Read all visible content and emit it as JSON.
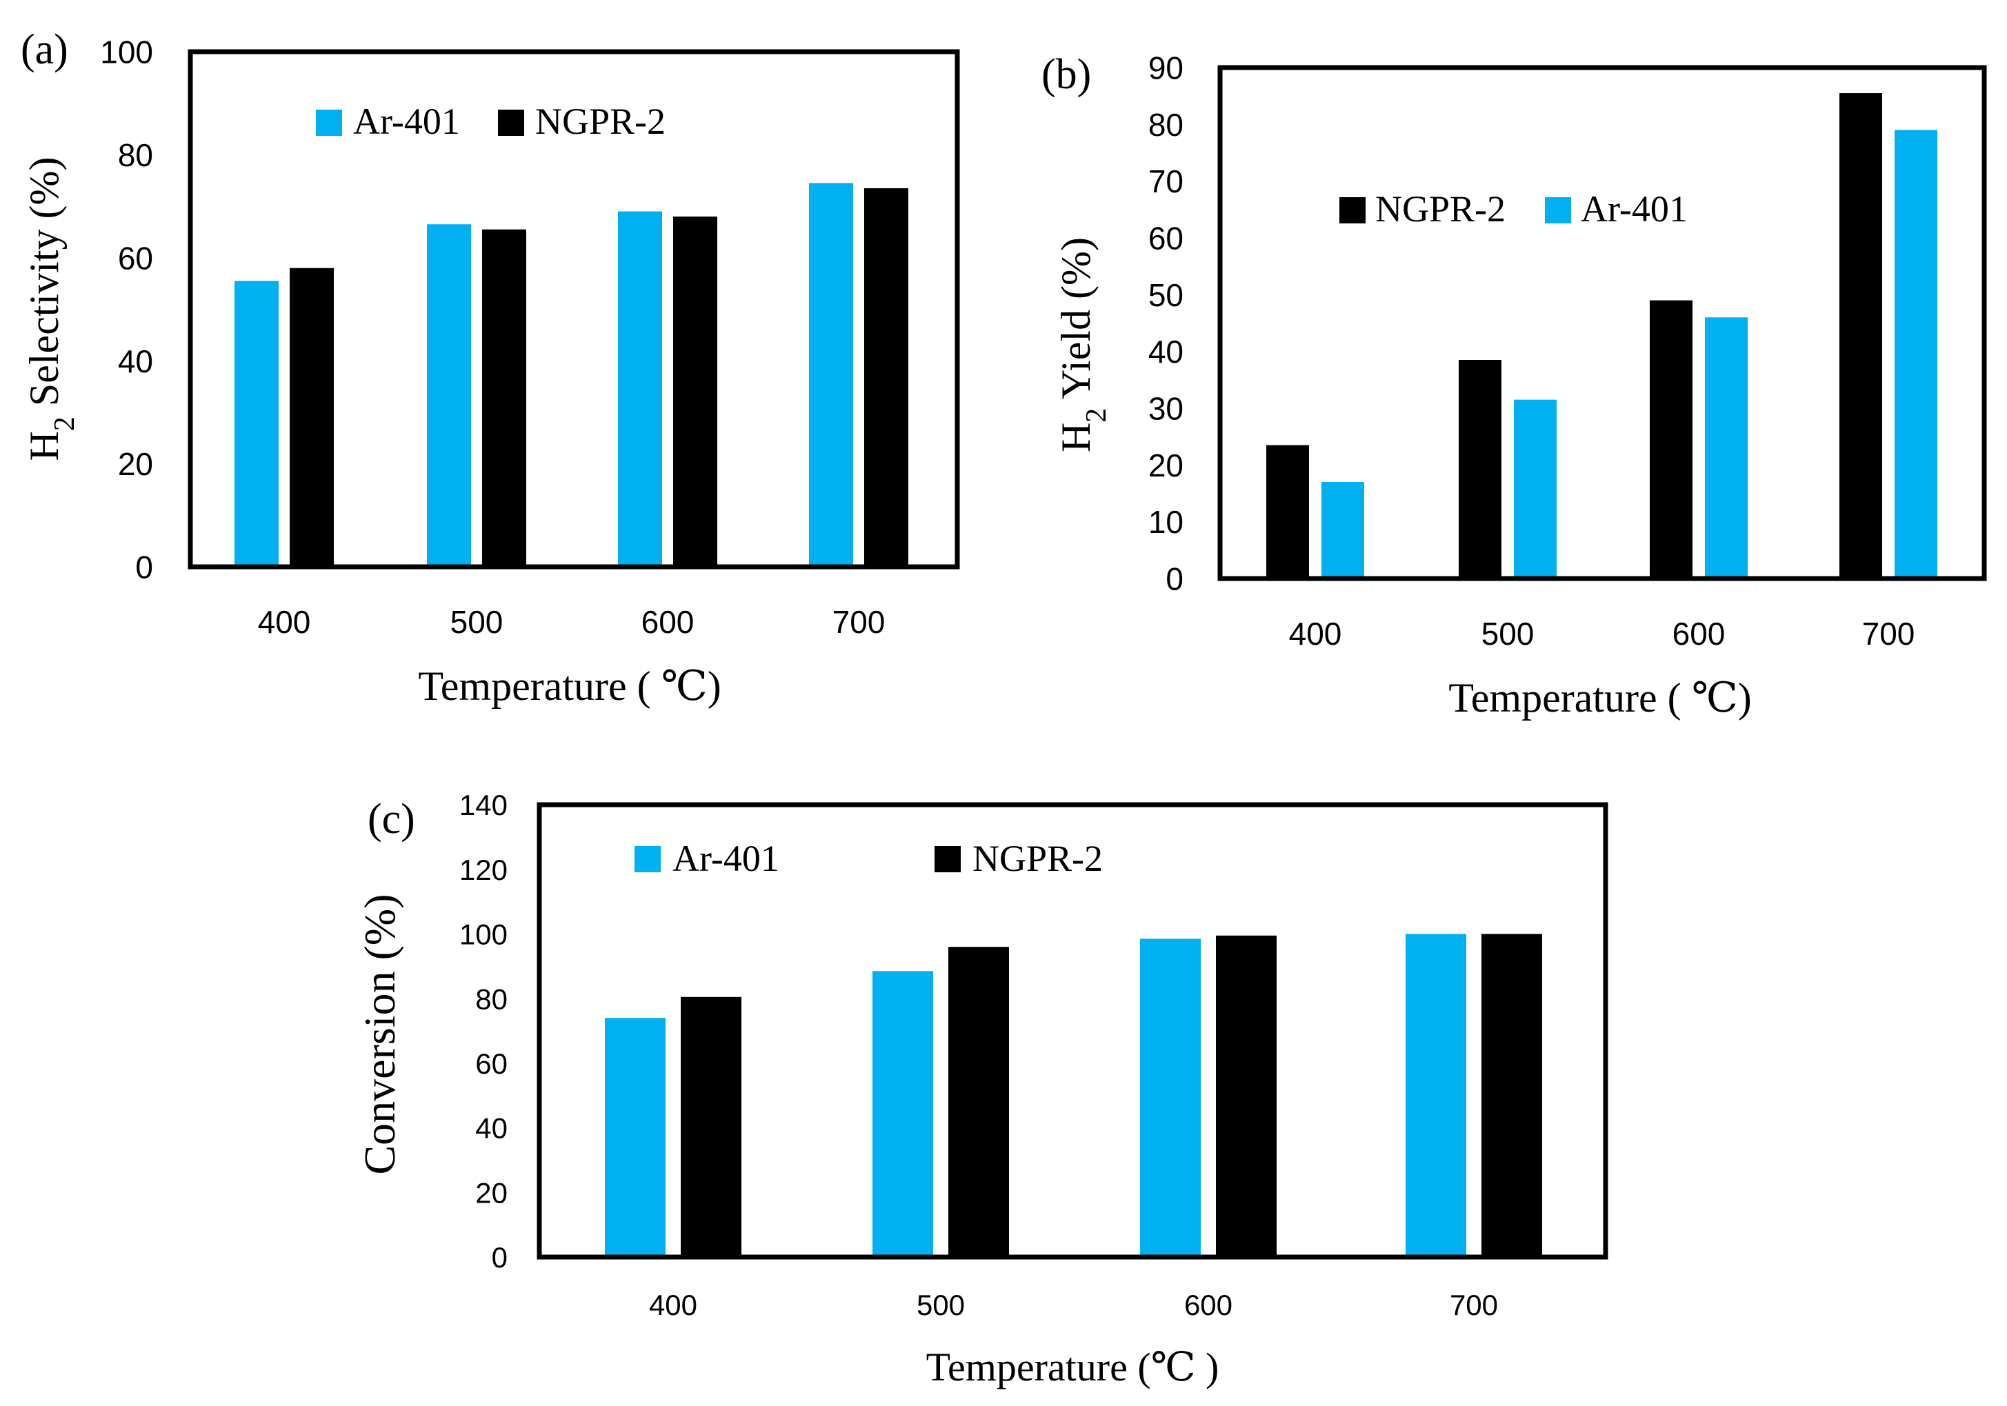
{
  "figure": {
    "colors": {
      "Ar-401": "#00B0F0",
      "NGPR-2": "#000000",
      "frame": "#000000"
    },
    "charts": [
      {
        "panel_label": "(a)",
        "ylabel_main": "H",
        "ylabel_sub": "2",
        "ylabel_rest": " Selectivity (%)",
        "xlabel": "Temperature ( ℃)",
        "yticks": [
          "0",
          "20",
          "40",
          "60",
          "80",
          "100"
        ],
        "legend": [
          "Ar-401",
          "NGPR-2"
        ]
      },
      {
        "panel_label": "(b)",
        "ylabel_main": "H",
        "ylabel_sub": "2",
        "ylabel_rest": " Yield (%)",
        "xlabel": "Temperature ( ℃)",
        "yticks": [
          "0",
          "10",
          "20",
          "30",
          "40",
          "50",
          "60",
          "70",
          "80",
          "90"
        ],
        "legend": [
          "NGPR-2",
          "Ar-401"
        ]
      },
      {
        "panel_label": "(c)",
        "ylabel_main": "",
        "ylabel_sub": "",
        "ylabel_rest": "Conversion (%)",
        "xlabel": "Temperature (℃ )",
        "yticks": [
          "0",
          "20",
          "40",
          "60",
          "80",
          "100",
          "120",
          "140"
        ],
        "legend": [
          "Ar-401",
          "NGPR-2"
        ]
      }
    ]
  },
  "chart_data": [
    {
      "type": "bar",
      "categories": [
        "400",
        "500",
        "600",
        "700"
      ],
      "series": [
        {
          "name": "Ar-401",
          "values": [
            55.5,
            66.5,
            69,
            74.5
          ]
        },
        {
          "name": "NGPR-2",
          "values": [
            58,
            65.5,
            68,
            73.5
          ]
        }
      ],
      "title": "",
      "xlabel": "Temperature ( ℃)",
      "ylabel": "H2 Selectivity (%)",
      "ylim": [
        0,
        100
      ],
      "legend_position": "top-left",
      "grid": false
    },
    {
      "type": "bar",
      "categories": [
        "400",
        "500",
        "600",
        "700"
      ],
      "series": [
        {
          "name": "NGPR-2",
          "values": [
            23.5,
            38.5,
            49,
            85.5
          ]
        },
        {
          "name": "Ar-401",
          "values": [
            17,
            31.5,
            46,
            79
          ]
        }
      ],
      "title": "",
      "xlabel": "Temperature ( ℃)",
      "ylabel": "H2 Yield (%)",
      "ylim": [
        0,
        90
      ],
      "legend_position": "top-left",
      "grid": false
    },
    {
      "type": "bar",
      "categories": [
        "400",
        "500",
        "600",
        "700"
      ],
      "series": [
        {
          "name": "Ar-401",
          "values": [
            74,
            88.5,
            98.5,
            100
          ]
        },
        {
          "name": "NGPR-2",
          "values": [
            80.5,
            96,
            99.5,
            100
          ]
        }
      ],
      "title": "",
      "xlabel": "Temperature (℃ )",
      "ylabel": "Conversion (%)",
      "ylim": [
        0,
        140
      ],
      "legend_position": "top-left",
      "grid": false
    }
  ]
}
